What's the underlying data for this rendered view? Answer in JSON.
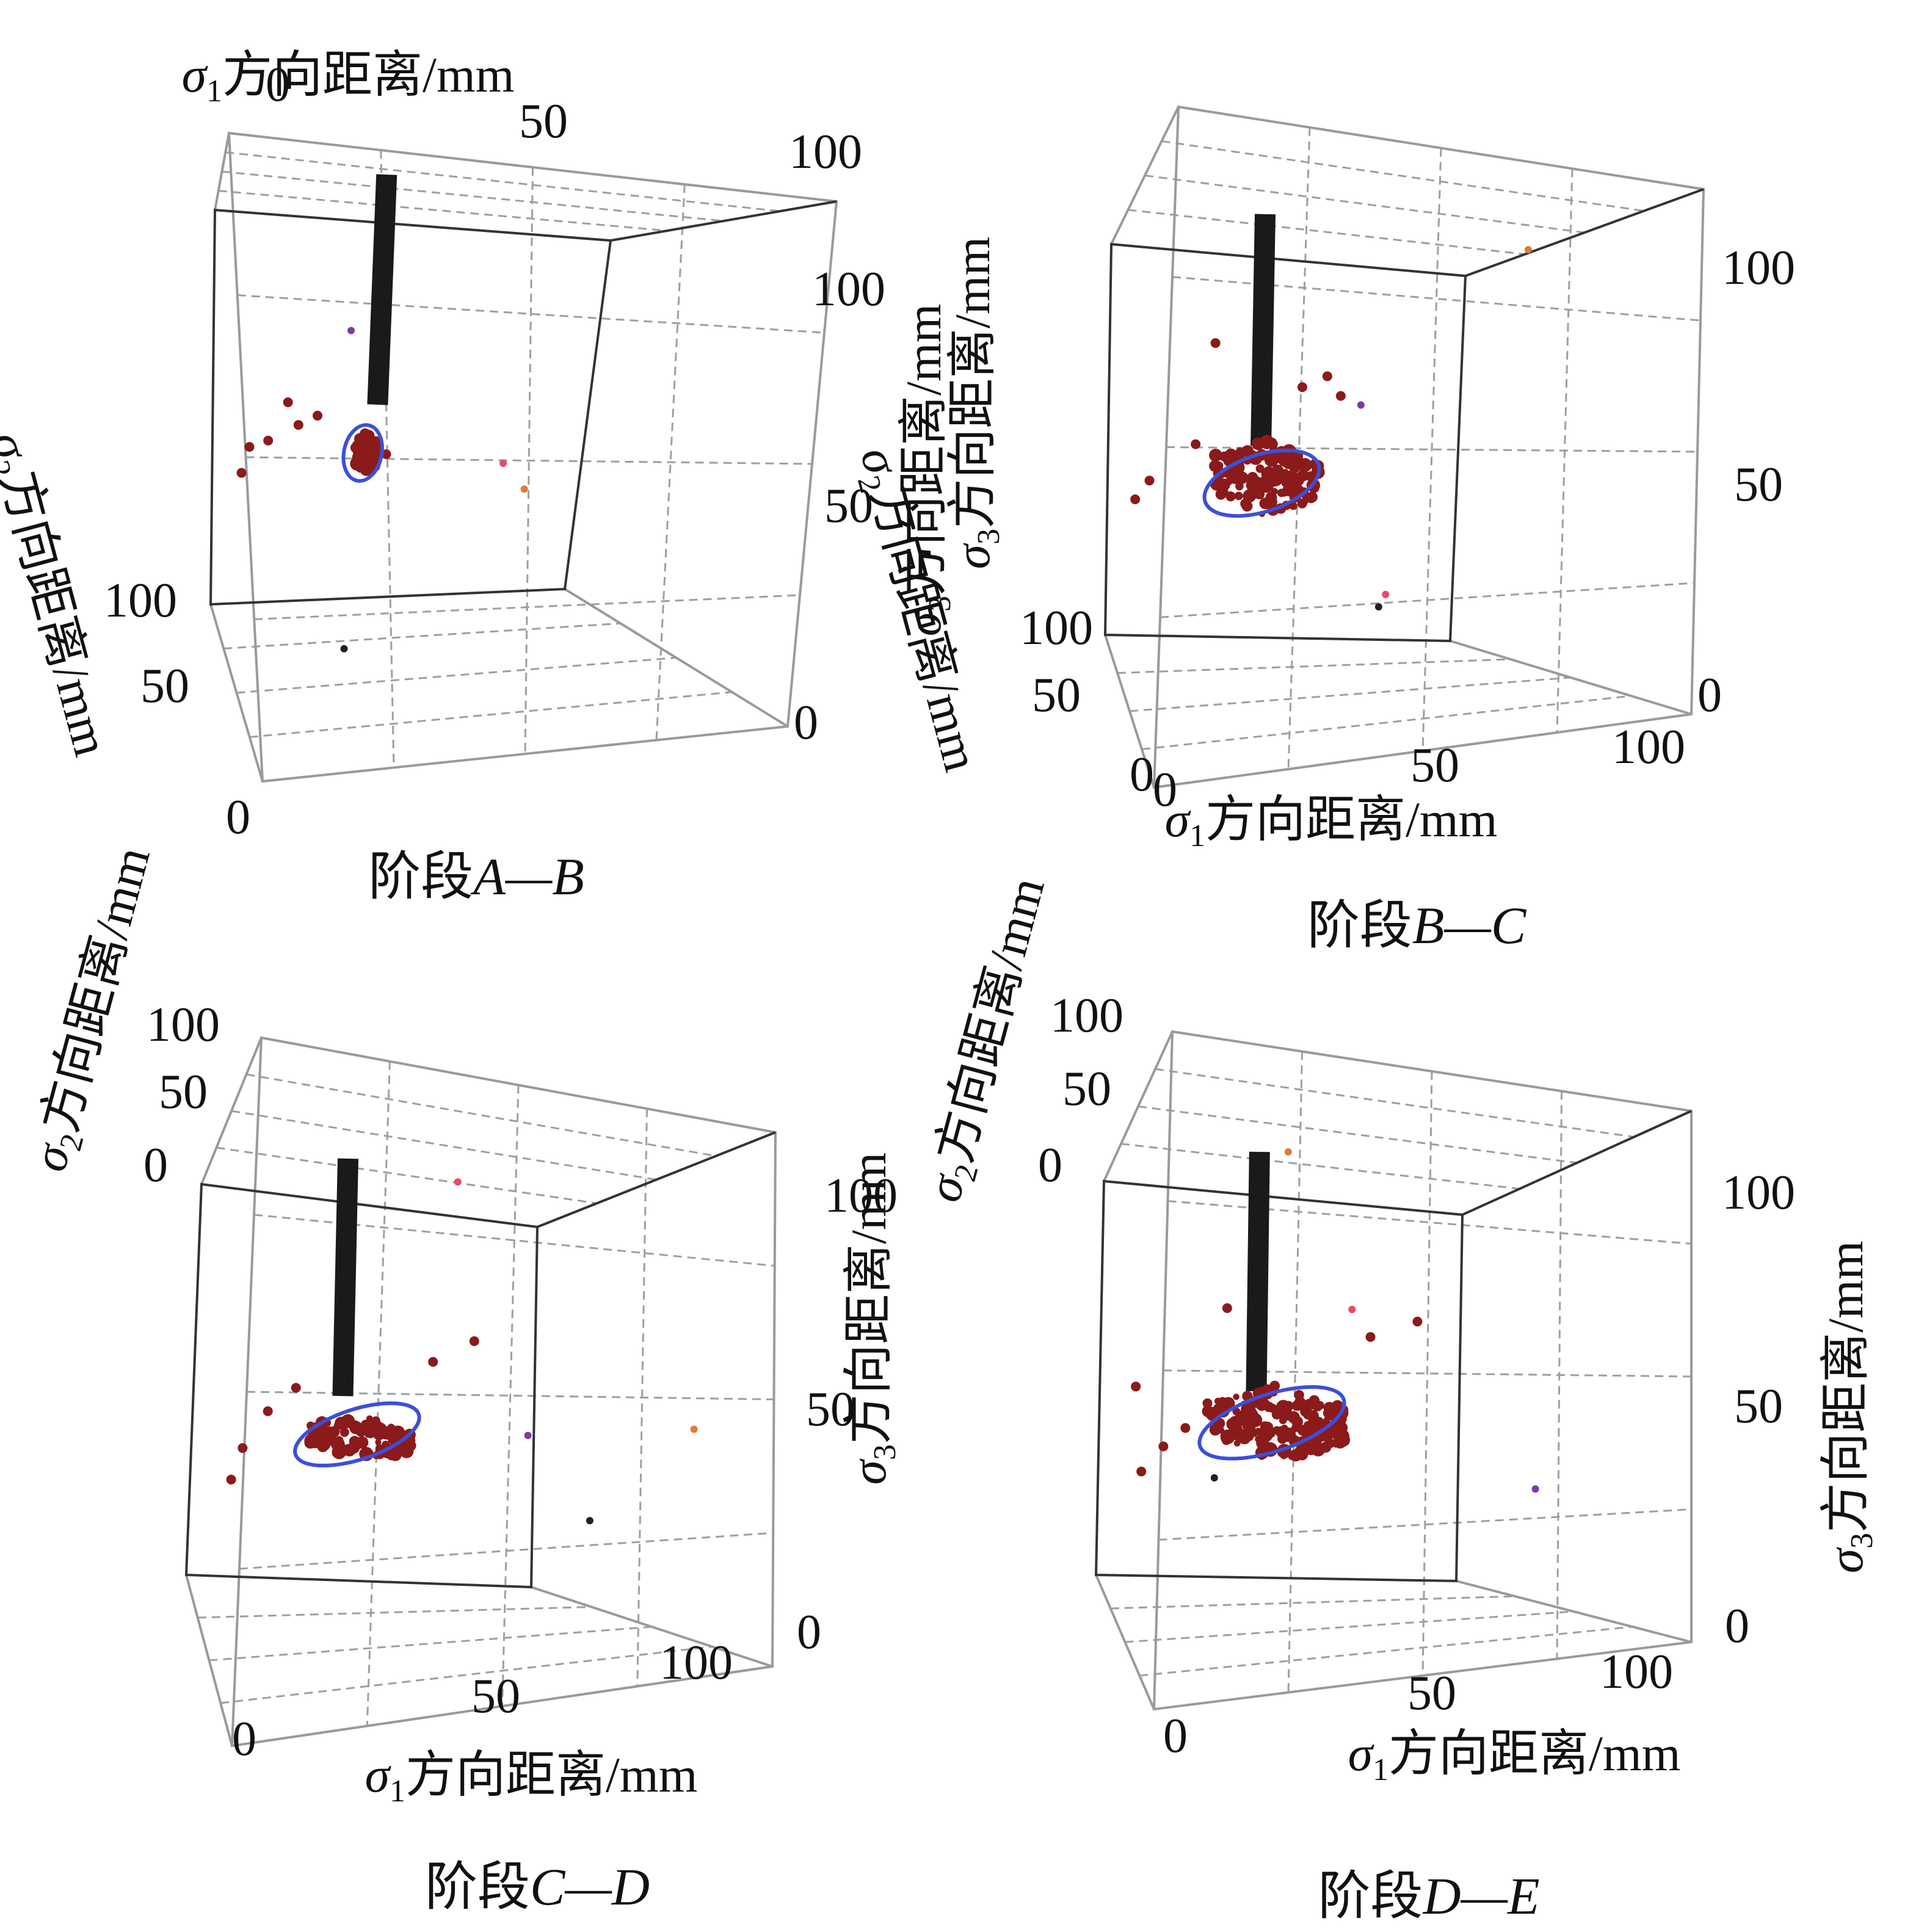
{
  "figure": {
    "panels": [
      {
        "id": "A-B",
        "caption": {
          "prefix": "阶段",
          "stage": "A—B"
        },
        "axes": {
          "x": {
            "label_sym": "σ",
            "label_sub": "1",
            "label_text": "方向距离/mm",
            "ticks": [
              "0",
              "50",
              "100"
            ]
          },
          "y": {
            "label_sym": "σ",
            "label_sub": "2",
            "label_text": "方向距离/mm",
            "ticks": [
              "100",
              "50",
              "0"
            ]
          },
          "z": {
            "label_sym": "σ",
            "label_sub": "3",
            "label_text": "方向距离/mm",
            "ticks": [
              "100",
              "50",
              "0"
            ]
          }
        }
      },
      {
        "id": "B-C",
        "caption": {
          "prefix": "阶段",
          "stage": "B—C"
        },
        "axes": {
          "x": {
            "label_sym": "σ",
            "label_sub": "1",
            "label_text": "方向距离/mm",
            "ticks": [
              "0",
              "50",
              "100"
            ]
          },
          "y": {
            "label_sym": "σ",
            "label_sub": "2",
            "label_text": "方向距离/mm",
            "ticks": [
              "100",
              "50",
              "0"
            ]
          },
          "z": {
            "label_sym": "σ",
            "label_sub": "3",
            "label_text": "方向距离/mm",
            "ticks": [
              "100",
              "50",
              "0"
            ]
          }
        }
      },
      {
        "id": "C-D",
        "caption": {
          "prefix": "阶段",
          "stage": "C—D"
        },
        "axes": {
          "x": {
            "label_sym": "σ",
            "label_sub": "1",
            "label_text": "方向距离/mm",
            "ticks": [
              "0",
              "50",
              "100"
            ]
          },
          "y": {
            "label_sym": "σ",
            "label_sub": "2",
            "label_text": "方向距离/mm",
            "ticks": [
              "100",
              "50",
              "0"
            ]
          },
          "z": {
            "label_sym": "σ",
            "label_sub": "3",
            "label_text": "方向距离/mm",
            "ticks": [
              "100",
              "50",
              "0"
            ]
          }
        }
      },
      {
        "id": "D-E",
        "caption": {
          "prefix": "阶段",
          "stage": "D—E"
        },
        "axes": {
          "x": {
            "label_sym": "σ",
            "label_sub": "1",
            "label_text": "方向距离/mm",
            "ticks": [
              "0",
              "50",
              "100"
            ]
          },
          "y": {
            "label_sym": "σ",
            "label_sub": "2",
            "label_text": "方向距离/mm",
            "ticks": [
              "100",
              "50",
              "0"
            ]
          },
          "z": {
            "label_sym": "σ",
            "label_sub": "3",
            "label_text": "方向距离/mm",
            "ticks": [
              "100",
              "50",
              "0"
            ]
          }
        }
      }
    ]
  },
  "colors": {
    "event": "#8b1a1a",
    "ellipse": "#3b4fd8",
    "borehole": "#1a1a1a",
    "frame": "#9a9a9a",
    "frame_dark": "#333333",
    "grid": "#9aa0a6",
    "stray": [
      "#e07a3a",
      "#7a3aa8",
      "#e84a6a",
      "#222222"
    ]
  },
  "chart_data": [
    {
      "type": "scatter",
      "title": "阶段A—B",
      "xlabel": "σ1方向距离/mm",
      "ylabel": "σ2方向距离/mm",
      "zlabel": "σ3方向距离/mm",
      "xlim": [
        0,
        100
      ],
      "ylim": [
        0,
        100
      ],
      "zlim": [
        0,
        120
      ],
      "borehole": {
        "x": 40,
        "y": 0,
        "z_top": 120,
        "z_bottom": 68
      },
      "cluster": {
        "x": [
          36,
          42
        ],
        "z": [
          58,
          72
        ],
        "count": 70
      },
      "ellipse": {
        "center_x": 38,
        "center_z": 65,
        "rx": 5,
        "rz": 9
      },
      "stray_events": [
        [
          20,
          62
        ],
        [
          10,
          48
        ],
        [
          28,
          58
        ],
        [
          47,
          46
        ],
        [
          23,
          55
        ],
        [
          8,
          40
        ],
        [
          15,
          50
        ]
      ]
    },
    {
      "type": "scatter",
      "title": "阶段B—C",
      "xlabel": "σ1方向距离/mm",
      "ylabel": "σ2方向距离/mm",
      "zlabel": "σ3方向距离/mm",
      "xlim": [
        0,
        100
      ],
      "ylim": [
        0,
        100
      ],
      "zlim": [
        0,
        120
      ],
      "borehole": {
        "x": 40,
        "y": 0,
        "z_top": 120,
        "z_bottom": 68
      },
      "cluster": {
        "x": [
          28,
          58
        ],
        "z": [
          58,
          82
        ],
        "count": 140
      },
      "ellipse": {
        "center_x": 42,
        "center_z": 68,
        "rx": 17,
        "rz": 9
      },
      "stray_events": [
        [
          12,
          48
        ],
        [
          30,
          92
        ],
        [
          55,
          80
        ],
        [
          62,
          84
        ],
        [
          8,
          42
        ],
        [
          25,
          60
        ],
        [
          66,
          78
        ]
      ]
    },
    {
      "type": "scatter",
      "title": "阶段C—D",
      "xlabel": "σ1方向距离/mm",
      "ylabel": "σ2方向距离/mm",
      "zlabel": "σ3方向距离/mm",
      "xlim": [
        0,
        100
      ],
      "ylim": [
        0,
        100
      ],
      "zlim": [
        0,
        120
      ],
      "borehole": {
        "x": 40,
        "y": 0,
        "z_top": 120,
        "z_bottom": 66
      },
      "cluster": {
        "x": [
          32,
          62
        ],
        "z": [
          58,
          72
        ],
        "count": 110
      },
      "ellipse": {
        "center_x": 46,
        "center_z": 66,
        "rx": 19,
        "rz": 8
      },
      "stray_events": [
        [
          22,
          52
        ],
        [
          15,
          40
        ],
        [
          70,
          72
        ],
        [
          82,
          80
        ],
        [
          30,
          60
        ],
        [
          12,
          30
        ]
      ]
    },
    {
      "type": "scatter",
      "title": "阶段D—E",
      "xlabel": "σ1方向距离/mm",
      "ylabel": "σ2方向距离/mm",
      "zlabel": "σ3方向距离/mm",
      "xlim": [
        0,
        100
      ],
      "ylim": [
        0,
        100
      ],
      "zlim": [
        0,
        120
      ],
      "borehole": {
        "x": 40,
        "y": 0,
        "z_top": 120,
        "z_bottom": 66
      },
      "cluster": {
        "x": [
          28,
          66
        ],
        "z": [
          56,
          80
        ],
        "count": 170
      },
      "ellipse": {
        "center_x": 46,
        "center_z": 68,
        "rx": 21,
        "rz": 9
      },
      "stray_events": [
        [
          10,
          58
        ],
        [
          18,
          40
        ],
        [
          24,
          46
        ],
        [
          30,
          54
        ],
        [
          75,
          78
        ],
        [
          88,
          84
        ],
        [
          12,
          32
        ],
        [
          35,
          84
        ]
      ]
    }
  ]
}
